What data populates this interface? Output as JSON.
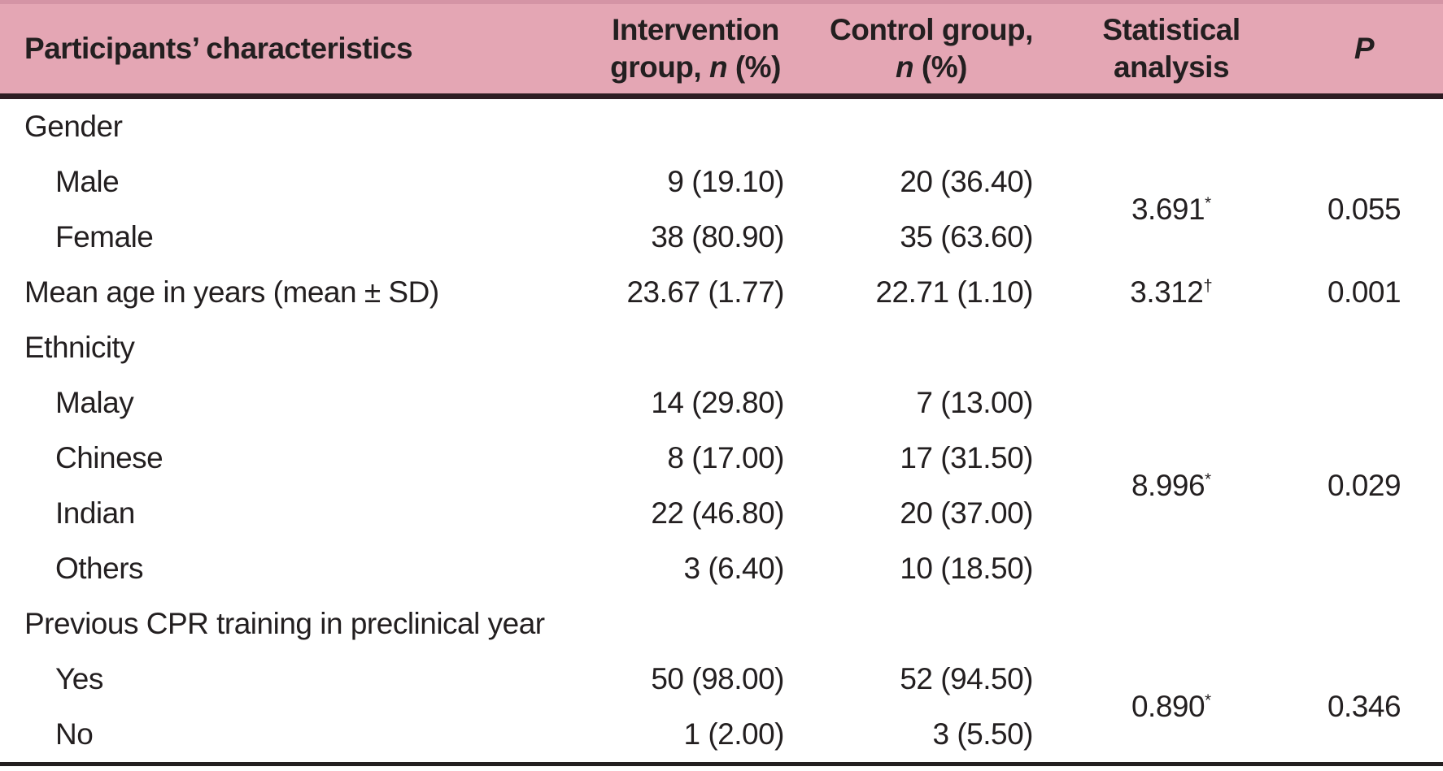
{
  "colors": {
    "header_bg": "#e4a6b4",
    "header_top_edge": "#d494a5",
    "header_rule": "#2d1c22",
    "bottom_rule": "#231f20",
    "text": "#231f20"
  },
  "header": {
    "characteristics": "Participants’ characteristics",
    "intervention": {
      "line1": "Intervention",
      "line2_prefix": "group, ",
      "n": "n",
      "suffix": " (%)"
    },
    "control": {
      "line1": "Control group,",
      "n": "n",
      "suffix": " (%)"
    },
    "statistical": {
      "line1": "Statistical",
      "line2": "analysis"
    },
    "p": "P"
  },
  "rows": [
    {
      "type": "section",
      "label": "Gender"
    },
    {
      "type": "data",
      "label": "Male",
      "intervention": "9 (19.10)",
      "control": "20 (36.40)",
      "stat": "3.691",
      "stat_sup": "*",
      "p": "0.055"
    },
    {
      "type": "data",
      "label": "Female",
      "intervention": "38 (80.90)",
      "control": "35 (63.60)"
    },
    {
      "type": "data",
      "label": "Mean age in years (mean ± SD)",
      "intervention": "23.67 (1.77)",
      "control": "22.71 (1.10)",
      "stat": "3.312",
      "stat_sup": "†",
      "p": "0.001"
    },
    {
      "type": "section",
      "label": "Ethnicity"
    },
    {
      "type": "data",
      "label": "Malay",
      "intervention": "14 (29.80)",
      "control": "7 (13.00)",
      "stat": "8.996",
      "stat_sup": "*",
      "p": "0.029"
    },
    {
      "type": "data",
      "label": "Chinese",
      "intervention": "8 (17.00)",
      "control": "17 (31.50)"
    },
    {
      "type": "data",
      "label": "Indian",
      "intervention": "22 (46.80)",
      "control": "20 (37.00)"
    },
    {
      "type": "data",
      "label": "Others",
      "intervention": "3 (6.40)",
      "control": "10 (18.50)"
    },
    {
      "type": "section",
      "label": "Previous CPR training in preclinical year"
    },
    {
      "type": "data",
      "label": "Yes",
      "intervention": "50 (98.00)",
      "control": "52 (94.50)",
      "stat": "0.890",
      "stat_sup": "*",
      "p": "0.346"
    },
    {
      "type": "data",
      "label": "No",
      "intervention": "1 (2.00)",
      "control": "3 (5.50)"
    }
  ]
}
